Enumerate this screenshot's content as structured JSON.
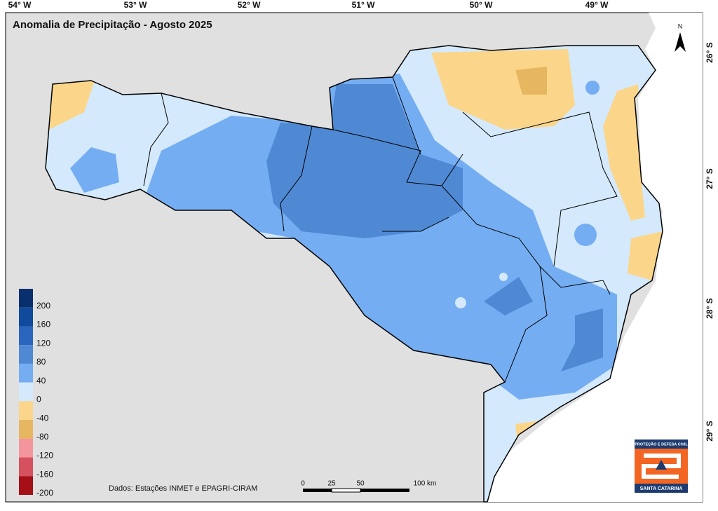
{
  "header": {
    "title": "Anomalia de Precipitação - Agosto 2025"
  },
  "axes": {
    "longitudes": [
      "54° W",
      "53° W",
      "52° W",
      "51° W",
      "50° W",
      "49° W"
    ],
    "latitudes": [
      "26° S",
      "27° S",
      "28° S",
      "29° S"
    ]
  },
  "north": "N",
  "legend": {
    "labels": [
      "200",
      "160",
      "120",
      "80",
      "40",
      "0",
      "-40",
      "-80",
      "-120",
      "-160",
      "-200"
    ],
    "colors": [
      "#082f6e",
      "#0f4a9c",
      "#2a66bd",
      "#4f89d4",
      "#74adf2",
      "#d4e9fb",
      "#fbd68a",
      "#e6b660",
      "#f4959b",
      "#d6515f",
      "#a50f15"
    ]
  },
  "source": "Dados: Estações INMET e EPAGRI-CIRAM",
  "scale_bar": {
    "labels": [
      "0",
      "25",
      "50",
      "100 km"
    ]
  },
  "logo": {
    "top": "PROTEÇÃO E DEFESA CIVIL",
    "bottom": "SANTA CATARINA"
  }
}
